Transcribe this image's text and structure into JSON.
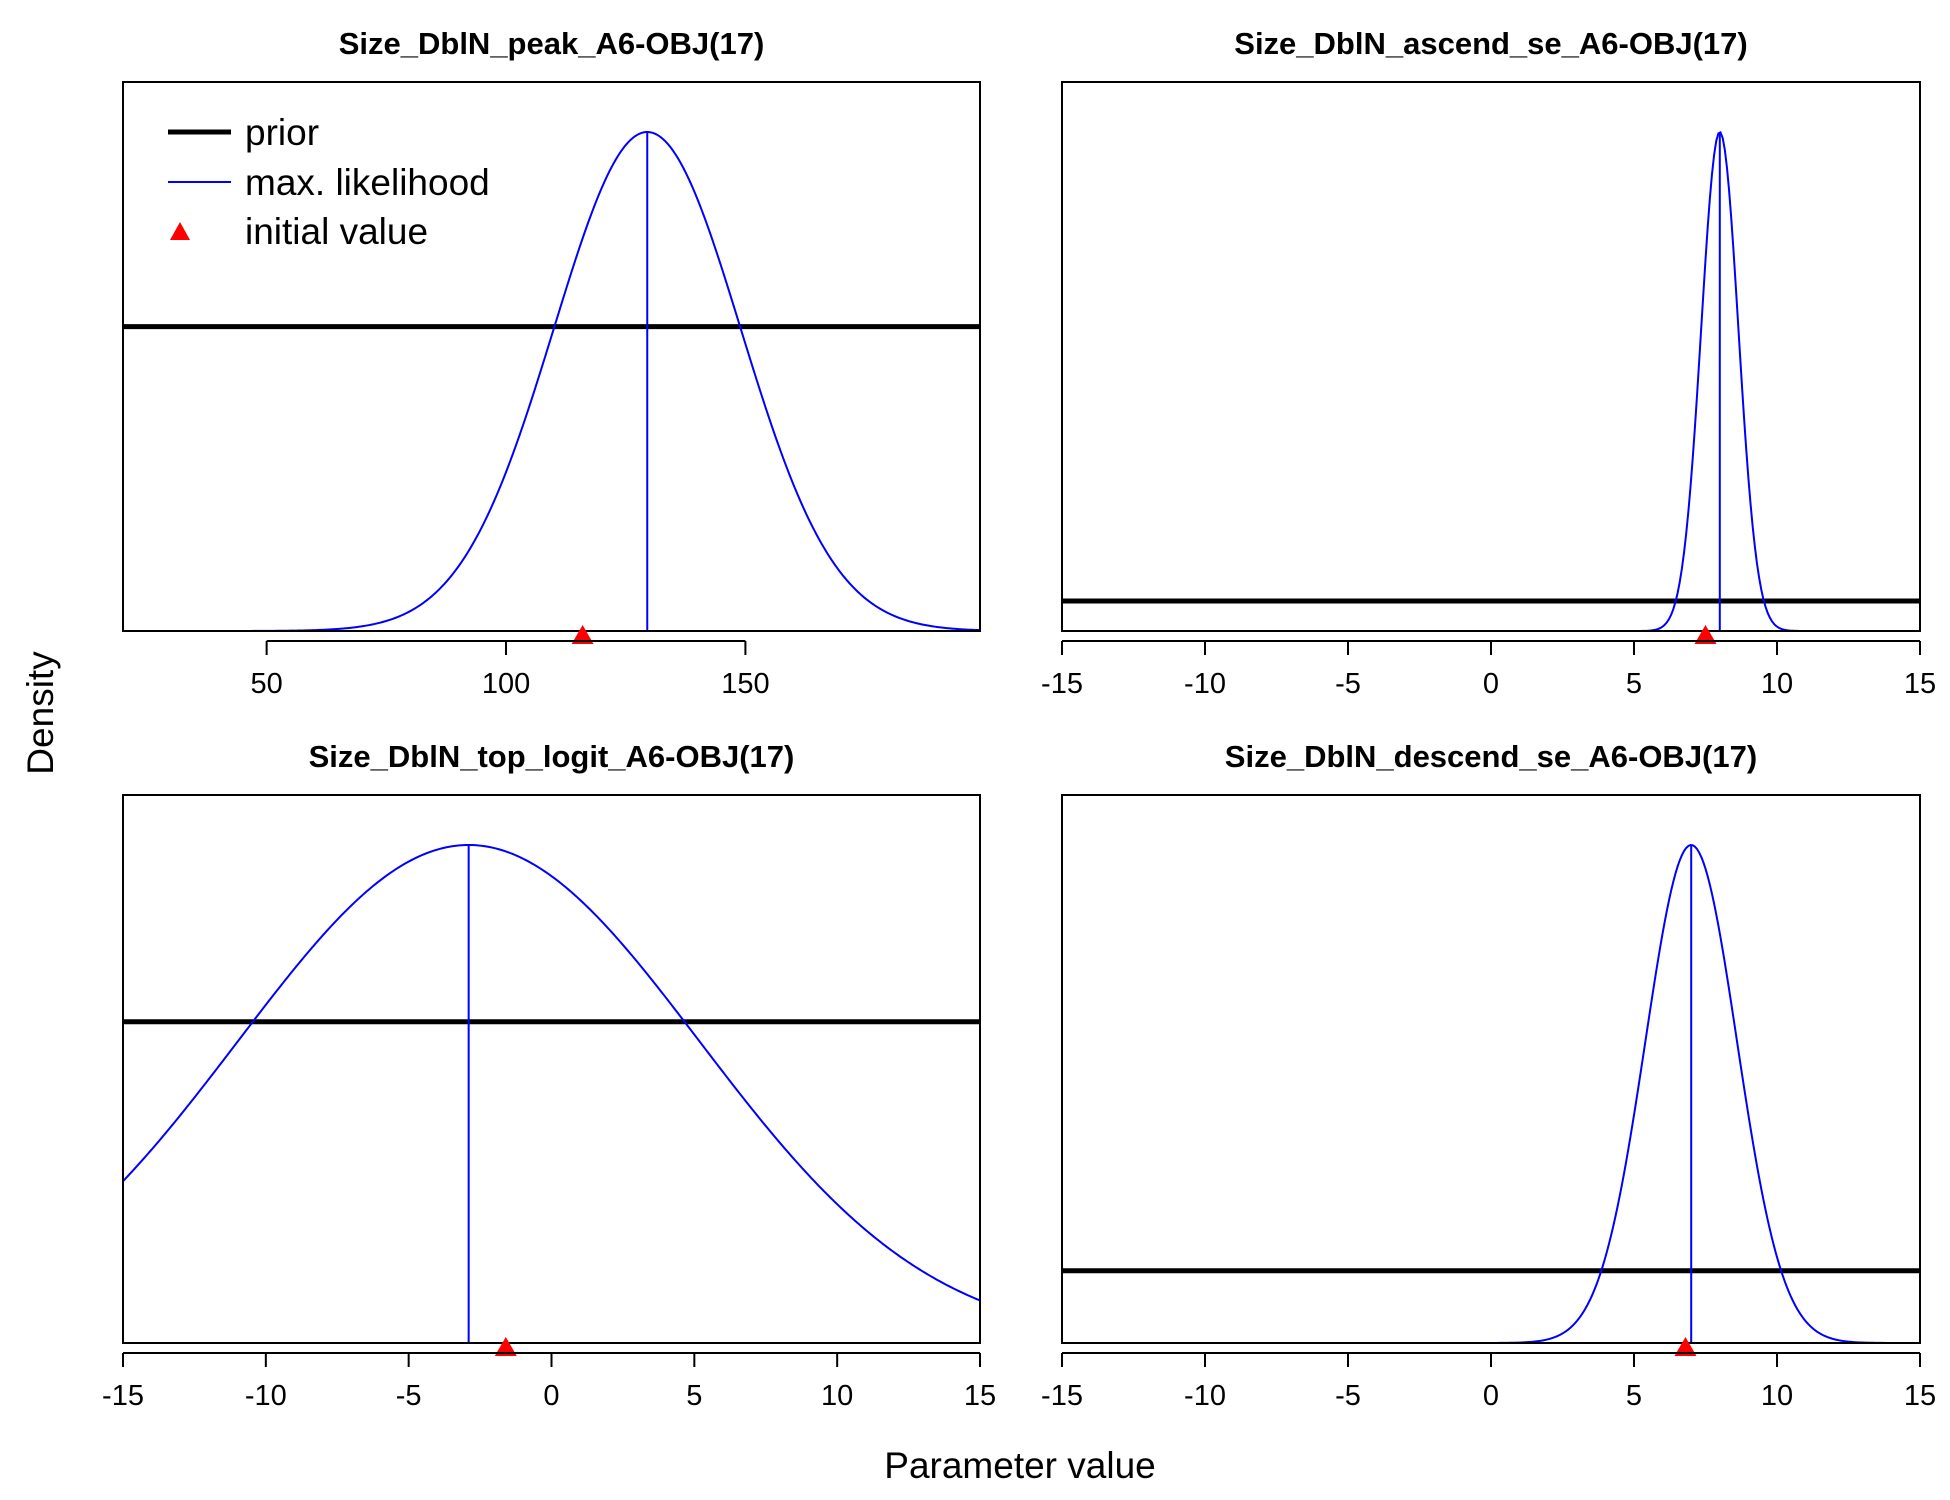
{
  "figure": {
    "xlabel": "Parameter value",
    "ylabel": "Density"
  },
  "legend": {
    "placement": "top-left of first panel",
    "entries": [
      {
        "label": "prior",
        "color": "#000000",
        "kind": "line"
      },
      {
        "label": "max. likelihood",
        "color": "#0000ff",
        "kind": "line"
      },
      {
        "label": "initial value",
        "color": "#ff0000",
        "kind": "triangle"
      }
    ]
  },
  "colors": {
    "prior": "#000000",
    "mle": "#0000ff",
    "initial": "#ff0000"
  },
  "chart_data": [
    {
      "type": "line",
      "title": "Size_DblN_peak_A6-OBJ(17)",
      "xlim": [
        20,
        199
      ],
      "xticks": [
        50,
        100,
        150
      ],
      "mle": 129.5,
      "mle_sd": 19.5,
      "initial": 116,
      "prior_level": 0.61,
      "grid": false
    },
    {
      "type": "line",
      "title": "Size_DblN_ascend_se_A6-OBJ(17)",
      "xlim": [
        -15,
        15
      ],
      "xticks": [
        -15,
        -10,
        -5,
        0,
        5,
        10,
        15
      ],
      "mle": 8.0,
      "mle_sd": 0.65,
      "initial": 7.5,
      "prior_level": 0.06,
      "grid": false
    },
    {
      "type": "line",
      "title": "Size_DblN_top_logit_A6-OBJ(17)",
      "xlim": [
        -15,
        15
      ],
      "xticks": [
        -15,
        -10,
        -5,
        0,
        5,
        10,
        15
      ],
      "mle": -2.9,
      "mle_sd": 8.07,
      "initial": -1.6,
      "prior_level": 0.645,
      "grid": false
    },
    {
      "type": "line",
      "title": "Size_DblN_descend_se_A6-OBJ(17)",
      "xlim": [
        -15,
        15
      ],
      "xticks": [
        -15,
        -10,
        -5,
        0,
        5,
        10,
        15
      ],
      "mle": 7.0,
      "mle_sd": 1.6,
      "initial": 6.8,
      "prior_level": 0.145,
      "grid": false
    }
  ]
}
